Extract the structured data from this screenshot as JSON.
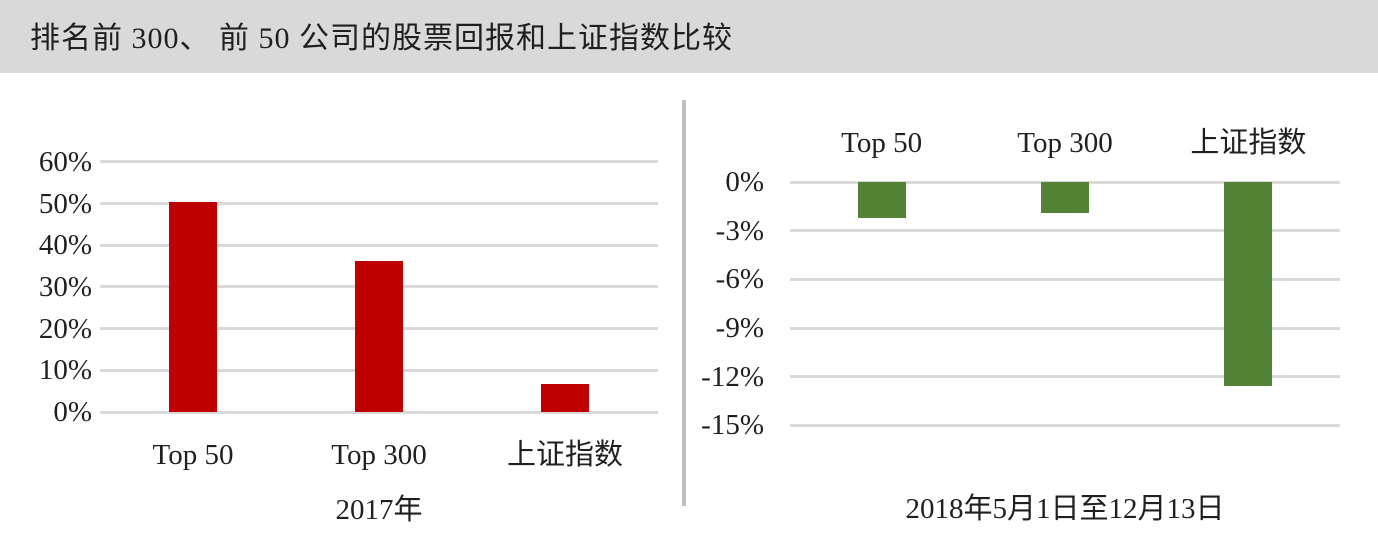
{
  "title": "排名前 300、 前 50 公司的股票回报和上证指数比较",
  "colors": {
    "title_bar_bg": "#D9D9D9",
    "gridline": "#D9D9D9",
    "divider": "#BFBFBF",
    "text": "#1F1F1F",
    "left_bar": "#C00000",
    "right_bar": "#548235"
  },
  "chart_data": [
    {
      "type": "bar",
      "name": "chart-2017",
      "xlabel": "2017年",
      "categories": [
        "Top 50",
        "Top 300",
        "上证指数"
      ],
      "values": [
        50.3,
        36.3,
        6.7
      ],
      "unit": "%",
      "bar_color": "#C00000",
      "ytick_labels": [
        "60%",
        "50%",
        "40%",
        "30%",
        "20%",
        "10%",
        "0%"
      ],
      "ytick_values": [
        60,
        50,
        40,
        30,
        20,
        10,
        0
      ],
      "ylim": [
        0,
        60
      ],
      "grid": true,
      "legend": "none",
      "category_label_position": "below-axis"
    },
    {
      "type": "bar",
      "name": "chart-2018-may-to-dec",
      "xlabel": "2018年5月1日至12月13日",
      "categories": [
        "Top 50",
        "Top 300",
        "上证指数"
      ],
      "values": [
        -2.2,
        -1.9,
        -12.6
      ],
      "unit": "%",
      "bar_color": "#548235",
      "ytick_labels": [
        "0%",
        "-3%",
        "-6%",
        "-9%",
        "-12%",
        "-15%"
      ],
      "ytick_values": [
        0,
        -3,
        -6,
        -9,
        -12,
        -15
      ],
      "ylim": [
        -15,
        0
      ],
      "grid": true,
      "legend": "none",
      "category_label_position": "above-chart"
    }
  ]
}
